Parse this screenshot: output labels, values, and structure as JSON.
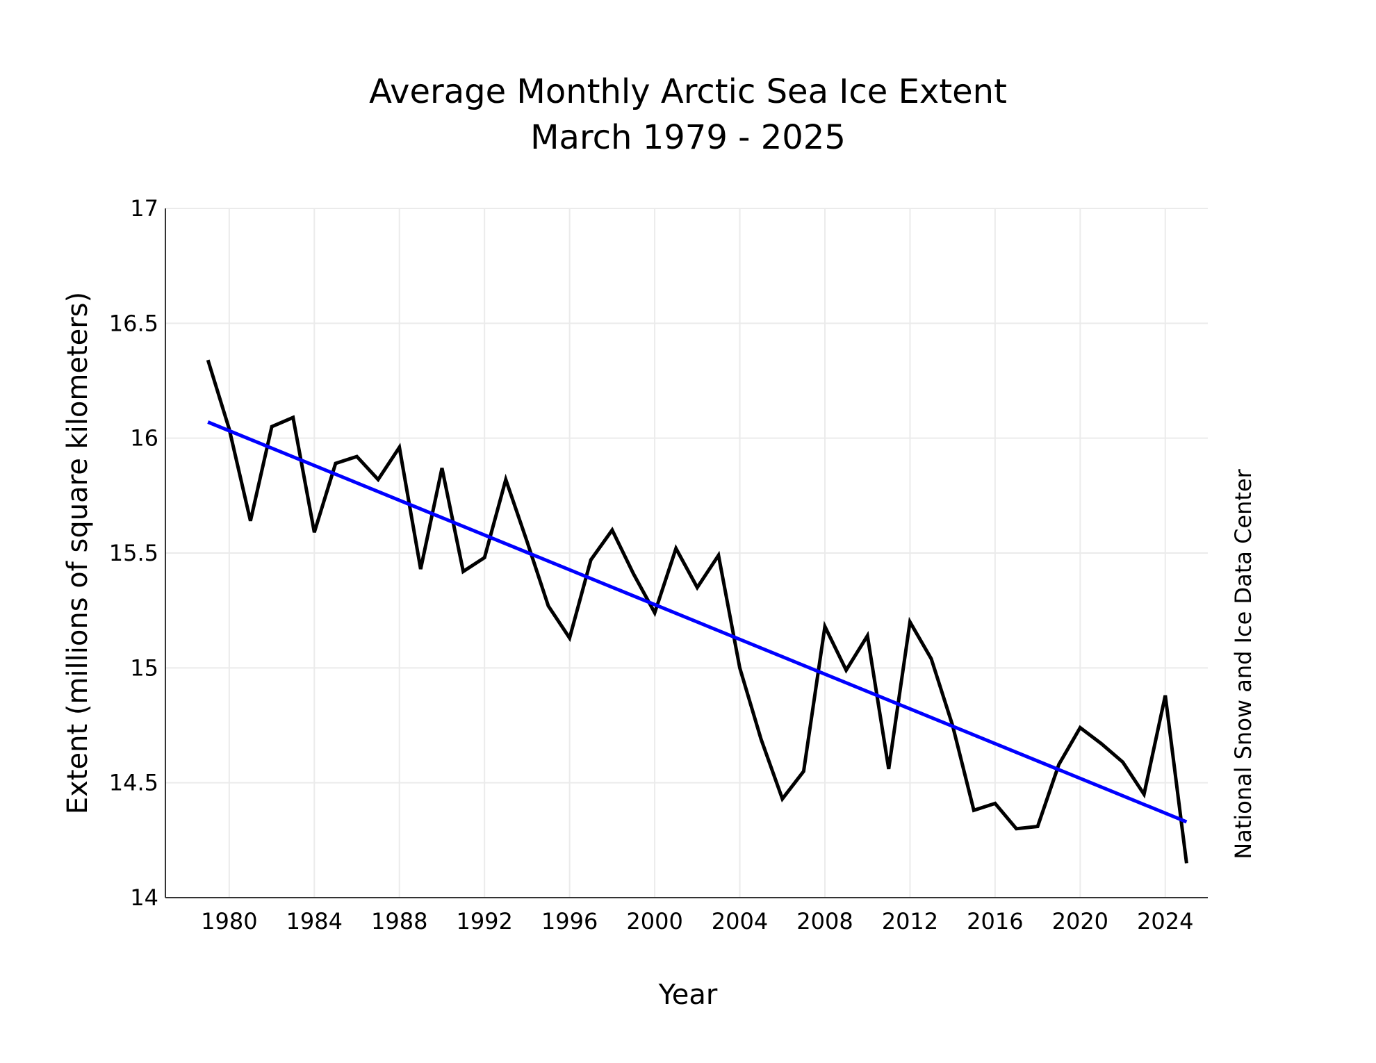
{
  "chart_data": {
    "type": "line",
    "title": [
      "Average Monthly Arctic Sea Ice Extent",
      "March 1979 - 2025"
    ],
    "xlabel": "Year",
    "ylabel": "Extent (millions of square kilometers)",
    "credit": "National Snow and Ice Data Center",
    "xlim": [
      1977,
      2026
    ],
    "ylim": [
      14,
      17
    ],
    "x_ticks": [
      1980,
      1984,
      1988,
      1992,
      1996,
      2000,
      2004,
      2008,
      2012,
      2016,
      2020,
      2024
    ],
    "y_ticks": [
      14,
      14.5,
      15,
      15.5,
      16,
      16.5,
      17
    ],
    "y_tick_labels": [
      "14",
      "14.5",
      "15",
      "15.5",
      "16",
      "16.5",
      "17"
    ],
    "grid": true,
    "legend": "none",
    "series": [
      {
        "color": "#000000",
        "x": [
          1979,
          1980,
          1981,
          1982,
          1983,
          1984,
          1985,
          1986,
          1987,
          1988,
          1989,
          1990,
          1991,
          1992,
          1993,
          1994,
          1995,
          1996,
          1997,
          1998,
          1999,
          2000,
          2001,
          2002,
          2003,
          2004,
          2005,
          2006,
          2007,
          2008,
          2009,
          2010,
          2011,
          2012,
          2013,
          2014,
          2015,
          2016,
          2017,
          2018,
          2019,
          2020,
          2021,
          2022,
          2023,
          2024,
          2025
        ],
        "values": [
          16.34,
          16.04,
          15.64,
          16.05,
          16.09,
          15.59,
          15.89,
          15.92,
          15.82,
          15.96,
          15.43,
          15.87,
          15.42,
          15.48,
          15.82,
          15.55,
          15.27,
          15.13,
          15.47,
          15.6,
          15.41,
          15.24,
          15.52,
          15.35,
          15.49,
          15.0,
          14.69,
          14.43,
          14.55,
          15.18,
          14.99,
          15.14,
          14.56,
          15.2,
          15.04,
          14.75,
          14.38,
          14.41,
          14.3,
          14.31,
          14.58,
          14.74,
          14.67,
          14.59,
          14.45,
          14.88,
          14.15
        ]
      },
      {
        "color": "#0000ff",
        "x": [
          1979,
          2025
        ],
        "values": [
          16.07,
          14.33
        ]
      }
    ]
  }
}
